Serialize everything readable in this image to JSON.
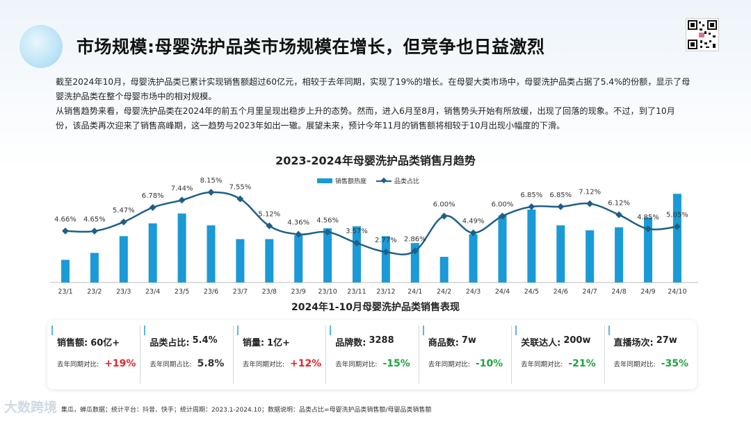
{
  "header": {
    "title": "市场规模:母婴洗护品类市场规模在增长，但竞争也日益激烈"
  },
  "intro": {
    "paragraph1": "截至2024年10月，母婴洗护品类已累计实现销售额超过60亿元，相较于去年同期，实现了19%的增长。在母婴大类市场中，母婴洗护品类占据了5.4%的份额，显示了母婴洗护品类在整个母婴市场中的相对规模。",
    "paragraph2": "从销售趋势来看，母婴洗护品类在2024年的前五个月里呈现出稳步上升的态势。然而，进入6月至8月，销售势头开始有所放缓，出现了回落的现象。不过，到了10月份，该品类再次迎来了销售高峰期，这一趋势与2023年如出一辙。展望未来，预计今年11月的销售额将相较于10月出现小幅度的下滑。"
  },
  "chart_data": {
    "type": "bar",
    "title": "2023-2024年母婴洗护品类销售月趋势",
    "categories": [
      "23/1",
      "23/2",
      "23/3",
      "23/4",
      "23/5",
      "23/6",
      "23/7",
      "23/8",
      "23/9",
      "23/10",
      "23/11",
      "23/12",
      "24/1",
      "24/2",
      "24/3",
      "24/4",
      "24/5",
      "24/6",
      "24/7",
      "24/8",
      "24/9",
      "24/10"
    ],
    "series": [
      {
        "name": "销售额热度",
        "type": "bar",
        "values": [
          2.3,
          3.0,
          4.7,
          6.0,
          7.0,
          5.8,
          4.4,
          4.4,
          4.8,
          5.5,
          5.7,
          4.7,
          4.0,
          2.6,
          4.9,
          6.8,
          7.4,
          5.8,
          5.3,
          5.6,
          6.6,
          9.0
        ]
      },
      {
        "name": "品类占比",
        "type": "line",
        "values": [
          4.66,
          4.65,
          5.47,
          6.78,
          7.44,
          8.15,
          7.55,
          5.12,
          4.36,
          4.56,
          3.57,
          2.77,
          2.86,
          6.0,
          4.49,
          6.0,
          6.85,
          6.85,
          7.12,
          6.12,
          4.85,
          5.05
        ],
        "labels": [
          "4.66%",
          "4.65%",
          "5.47%",
          "6.78%",
          "7.44%",
          "8.15%",
          "7.55%",
          "5.12%",
          "4.36%",
          "4.56%",
          "3.57%",
          "2.77%",
          "2.86%",
          "6.00%",
          "4.49%",
          "6.00%",
          "6.85%",
          "6.85%",
          "7.12%",
          "6.12%",
          "4.85%",
          "5.05%"
        ]
      }
    ],
    "legend_position": "top-center",
    "grid": false,
    "colors": {
      "bar": "#1a9ad6",
      "line": "#1f5f86"
    }
  },
  "legend": {
    "bar_label": "销售额热度",
    "line_label": "品类占比"
  },
  "stats": {
    "title": "2024年1-10月母婴洗护品类销售表现",
    "cards": [
      {
        "label": "销售额:",
        "value": "60亿+",
        "compare_label": "去年同期对比:",
        "compare_value": "+19%",
        "trend": "up"
      },
      {
        "label": "品类占比:",
        "value": "5.4%",
        "compare_label": "去年同期占比:",
        "compare_value": "5.8%",
        "trend": "neutral"
      },
      {
        "label": "销量:",
        "value": "1亿+",
        "compare_label": "去年同期对比:",
        "compare_value": "+12%",
        "trend": "up"
      },
      {
        "label": "品牌数:",
        "value": "3288",
        "compare_label": "去年同期对比:",
        "compare_value": "-15%",
        "trend": "down"
      },
      {
        "label": "商品数:",
        "value": "7w",
        "compare_label": "去年同期对比:",
        "compare_value": "-10%",
        "trend": "down"
      },
      {
        "label": "关联达人:",
        "value": "200w",
        "compare_label": "去年同期对比:",
        "compare_value": "-21%",
        "trend": "down"
      },
      {
        "label": "直播场次:",
        "value": "27w",
        "compare_label": "去年同期对比:",
        "compare_value": "-35%",
        "trend": "down"
      }
    ]
  },
  "footer": {
    "text": "集瓜，蝉瓜数据；统计平台：抖音、快手；统计周期：2023.1-2024.10；数据说明：品类占比=母婴洗护品类销售额/母婴品类销售额"
  },
  "watermark": {
    "text": "大数跨境"
  }
}
